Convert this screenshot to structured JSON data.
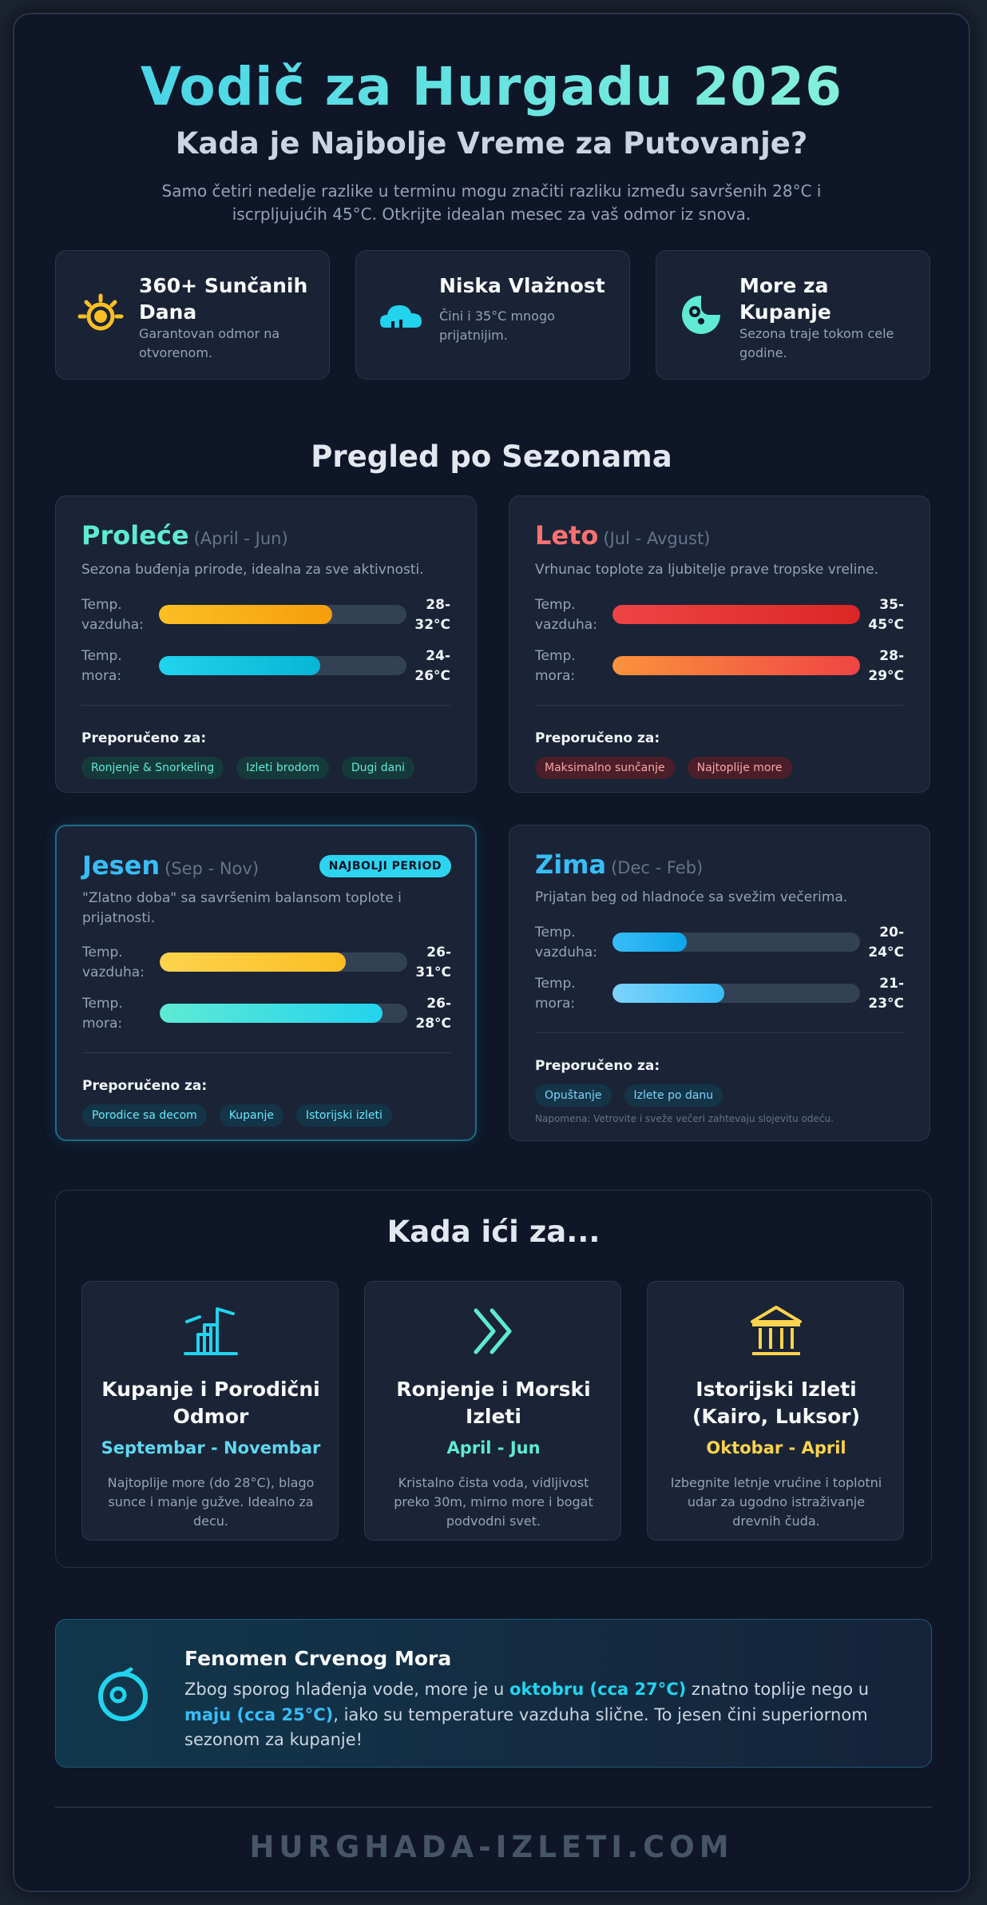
{
  "header": {
    "title": "Vodič za Hurgadu 2026",
    "subtitle": "Kada je Najbolje Vreme za Putovanje?",
    "intro": "Samo četiri nedelje razlike u terminu mogu značiti razliku između savršenih 28°C i iscrpljujućih 45°C. Otkrijte idealan mesec za vaš odmor iz snova."
  },
  "features": [
    {
      "title": "360+ Sunčanih Dana",
      "desc": "Garantovan odmor na otvorenom.",
      "icon": "sun-icon"
    },
    {
      "title": "Niska Vlažnost",
      "desc": "Čini i 35°C mnogo prijatnijim.",
      "icon": "cloud-icon"
    },
    {
      "title": "More za Kupanje",
      "desc": "Sezona traje tokom cele godine.",
      "icon": "fish-icon"
    }
  ],
  "seasons_title": "Pregled po Sezonama",
  "seasons": {
    "spring": {
      "name": "Proleće",
      "dates": "(April - Jun)",
      "color": "#5eead4",
      "desc": "Sezona buđenja prirode, idealna za sve aktivnosti.",
      "air_label": "Temp. vazduha:",
      "air_value": "28-32°C",
      "air_fill": 0.7,
      "sea_label": "Temp. mora:",
      "sea_value": "24-26°C",
      "sea_fill": 0.65,
      "rec_label": "Preporučeno za:",
      "tags": [
        "Ronjenje & Snorkeling",
        "Izleti brodom",
        "Dugi dani"
      ]
    },
    "summer": {
      "name": "Leto",
      "dates": "(Jul - Avgust)",
      "color": "#f87171",
      "desc": "Vrhunac toplote za ljubitelje prave tropske vreline.",
      "air_label": "Temp. vazduha:",
      "air_value": "35-45°C",
      "air_fill": 1.0,
      "sea_label": "Temp. mora:",
      "sea_value": "28-29°C",
      "sea_fill": 1.0,
      "rec_label": "Preporučeno za:",
      "tags": [
        "Maksimalno sunčanje",
        "Najtoplije more"
      ]
    },
    "autumn": {
      "name": "Jesen",
      "dates": "(Sep - Nov)",
      "color": "#38bdf8",
      "badge": "NAJBOLJI PERIOD",
      "desc": "\"Zlatno doba\" sa savršenim balansom toplote i prijatnosti.",
      "air_label": "Temp. vazduha:",
      "air_value": "26-31°C",
      "air_fill": 0.75,
      "sea_label": "Temp. mora:",
      "sea_value": "26-28°C",
      "sea_fill": 0.9,
      "rec_label": "Preporučeno za:",
      "tags": [
        "Porodice sa decom",
        "Kupanje",
        "Istorijski izleti"
      ]
    },
    "winter": {
      "name": "Zima",
      "dates": "(Dec - Feb)",
      "color": "#38bdf8",
      "desc": "Prijatan beg od hladnoće sa svežim večerima.",
      "air_label": "Temp. vazduha:",
      "air_value": "20-24°C",
      "air_fill": 0.3,
      "sea_label": "Temp. mora:",
      "sea_value": "21-23°C",
      "sea_fill": 0.45,
      "rec_label": "Preporučeno za:",
      "tags": [
        "Opuštanje",
        "Izlete po danu"
      ],
      "note": "Napomena: Vetrovite i sveže večeri zahtevaju slojevitu odeću."
    }
  },
  "when": {
    "title": "Kada ići za...",
    "cards": [
      {
        "title": "Kupanje i Porodični Odmor",
        "period": "Septembar - Novembar",
        "period_color": "#5ed8f0",
        "desc": "Najtoplije more (do 28°C), blago sunce i manje gužve. Idealno za decu.",
        "icon": "family-icon"
      },
      {
        "title": "Ronjenje i Morski Izleti",
        "period": "April - Jun",
        "period_color": "#5eead4",
        "desc": "Kristalno čista voda, vidljivost preko 30m, mirno more i bogat podvodni svet.",
        "icon": "chevrons-icon"
      },
      {
        "title": "Istorijski Izleti (Kairo, Luksor)",
        "period": "Oktobar - April",
        "period_color": "#fcd34d",
        "desc": "Izbegnite letnje vrućine i toplotni udar za ugodno istraživanje drevnih čuda.",
        "icon": "temple-icon"
      }
    ]
  },
  "phenomenon": {
    "title": "Fenomen Crvenog Mora",
    "text_1": "Zbog sporog hlađenja vode, more je u ",
    "hl_1": "oktobru (cca 27°C)",
    "text_2": " znatno toplije nego u ",
    "hl_2": "maju (cca 25°C)",
    "text_3": ", iako su temperature vazduha slične. To jesen čini superiornom sezonom za kupanje!"
  },
  "footer": "HURGHADA-IZLETI.COM"
}
